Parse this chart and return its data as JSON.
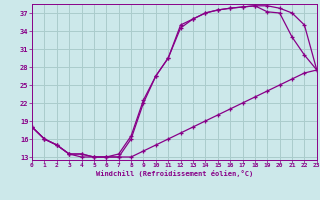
{
  "xlabel": "Windchill (Refroidissement éolien,°C)",
  "bg_color": "#cce8ea",
  "grid_color": "#aacccc",
  "line_color": "#880088",
  "x_ticks": [
    0,
    1,
    2,
    3,
    4,
    5,
    6,
    7,
    8,
    9,
    10,
    11,
    12,
    13,
    14,
    15,
    16,
    17,
    18,
    19,
    20,
    21,
    22,
    23
  ],
  "y_ticks": [
    13,
    16,
    19,
    22,
    25,
    28,
    31,
    34,
    37
  ],
  "xlim": [
    0,
    23
  ],
  "ylim": [
    12.5,
    38.5
  ],
  "curve1_x": [
    0,
    1,
    2,
    3,
    4,
    5,
    6,
    7,
    8,
    9,
    10,
    11,
    12,
    13,
    14,
    15,
    16,
    17,
    18,
    19,
    20,
    21,
    22,
    23
  ],
  "curve1_y": [
    18,
    16,
    15,
    13.5,
    13.5,
    13,
    13,
    13.5,
    16.5,
    22.5,
    26.5,
    29.5,
    35,
    36,
    37,
    37.5,
    37.8,
    38,
    38.2,
    38.2,
    37.8,
    37,
    35,
    27.5
  ],
  "curve2_x": [
    0,
    1,
    2,
    3,
    4,
    5,
    6,
    7,
    8,
    9,
    10,
    11,
    12,
    13,
    14,
    15,
    16,
    17,
    18,
    19,
    20,
    21,
    22,
    23
  ],
  "curve2_y": [
    18,
    16,
    15,
    13.5,
    13.5,
    13,
    13,
    13,
    16,
    22,
    26.5,
    29.5,
    34.5,
    36,
    37,
    37.5,
    37.8,
    38,
    38.2,
    37.2,
    37,
    33,
    30,
    27.5
  ],
  "curve3_x": [
    0,
    1,
    2,
    3,
    4,
    5,
    6,
    7,
    8,
    9,
    10,
    11,
    12,
    13,
    14,
    15,
    16,
    17,
    18,
    19,
    20,
    21,
    22,
    23
  ],
  "curve3_y": [
    18,
    16,
    15,
    13.5,
    13,
    13,
    13,
    13,
    13,
    14,
    15,
    16,
    17,
    18,
    19,
    20,
    21,
    22,
    23,
    24,
    25,
    26,
    27,
    27.5
  ]
}
